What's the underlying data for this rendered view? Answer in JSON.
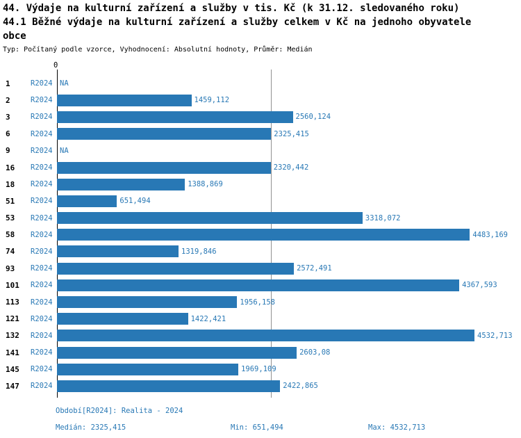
{
  "chart_data": {
    "type": "bar",
    "orientation": "horizontal",
    "title_lines": [
      "44. Výdaje na kulturní zařízení a služby v tis. Kč (k 31.12. sledovaného roku)",
      "44.1 Běžné výdaje na kulturní zařízení a služby celkem v Kč na jednoho obyvatele",
      "obce"
    ],
    "meta_line": "Typ: Počítaný podle vzorce, Vyhodnocení: Absolutní hodnoty, Průměr: Medián",
    "series": "R2024",
    "categories": [
      "1",
      "2",
      "3",
      "6",
      "9",
      "16",
      "18",
      "51",
      "53",
      "58",
      "74",
      "93",
      "101",
      "113",
      "121",
      "132",
      "141",
      "145",
      "147"
    ],
    "values": [
      null,
      1459.112,
      2560.124,
      2325.415,
      null,
      2320.442,
      1388.869,
      651.494,
      3318.072,
      4483.169,
      1319.846,
      2572.491,
      4367.593,
      1956.158,
      1422.421,
      4532.713,
      2603.08,
      1969.109,
      2422.865
    ],
    "value_labels": [
      "NA",
      "1459,112",
      "2560,124",
      "2325,415",
      "NA",
      "2320,442",
      "1388,869",
      "651,494",
      "3318,072",
      "4483,169",
      "1319,846",
      "2572,491",
      "4367,593",
      "1956,158",
      "1422,421",
      "4532,713",
      "2603,08",
      "1969,109",
      "2422,865"
    ],
    "x_zero_label": "0",
    "xlim": [
      0,
      4532.713
    ],
    "median_value": 2325.415,
    "bar_color": "#2878b5",
    "median_line_color": "#909090",
    "axis_color": "#000000",
    "grid": false,
    "legend": "none"
  },
  "footer": {
    "period": "Období[R2024]: Realita - 2024",
    "median": "Medián: 2325,415",
    "min": "Min: 651,494",
    "max": "Max: 4532,713"
  }
}
